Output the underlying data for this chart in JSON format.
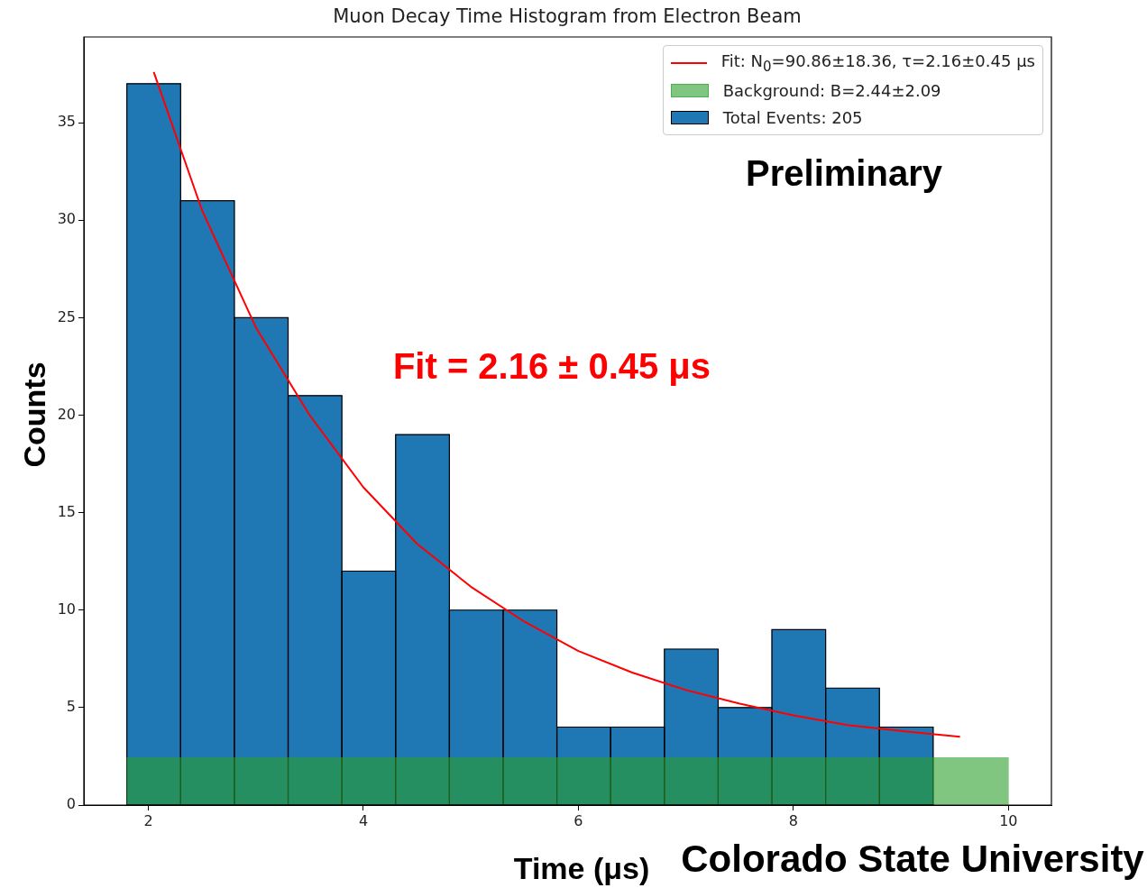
{
  "chart_data": {
    "type": "histogram",
    "title": "Muon Decay Time Histogram from Electron Beam",
    "xlabel": "Time (μs)",
    "ylabel": "Counts",
    "xlim": [
      1.4,
      10.4
    ],
    "ylim": [
      0,
      39.4
    ],
    "xticks": [
      2,
      4,
      6,
      8,
      10
    ],
    "yticks": [
      0,
      5,
      10,
      15,
      20,
      25,
      30,
      35
    ],
    "legend": "top right",
    "series": [
      {
        "type": "line",
        "name": "Fit: N$_{0}$=90.86±18.36, τ=2.16±0.45 μs",
        "color": "#ff0000",
        "x": [
          2.05,
          2.5,
          3.0,
          3.5,
          4.0,
          4.5,
          5.0,
          5.5,
          6.0,
          6.5,
          7.0,
          7.5,
          8.0,
          8.5,
          9.0,
          9.55
        ],
        "values": [
          37.6,
          30.5,
          24.5,
          20,
          16.3,
          13.4,
          11.2,
          9.4,
          7.9,
          6.8,
          5.9,
          5.2,
          4.6,
          4.1,
          3.8,
          3.5
        ]
      },
      {
        "type": "histogram",
        "name": "Background: B=2.44±2.09",
        "color": "#2ca02c",
        "bins": [
          1.8,
          10.0
        ],
        "values": [
          2.44
        ]
      },
      {
        "type": "histogram",
        "name": "Total Events: 205",
        "color": "#1f77b4",
        "bins": [
          1.8,
          2.3,
          2.8,
          3.3,
          3.8,
          4.3,
          4.8,
          5.3,
          5.8,
          6.3,
          6.8,
          7.3,
          7.8,
          8.3,
          8.8,
          9.3
        ],
        "values": [
          37,
          31,
          25,
          21,
          12,
          19,
          10,
          10,
          4,
          4,
          8,
          5,
          9,
          6,
          4
        ]
      }
    ],
    "annotations": [
      "Fit = 2.16 ± 0.45 μs",
      "Preliminary",
      "Colorado State University"
    ]
  }
}
